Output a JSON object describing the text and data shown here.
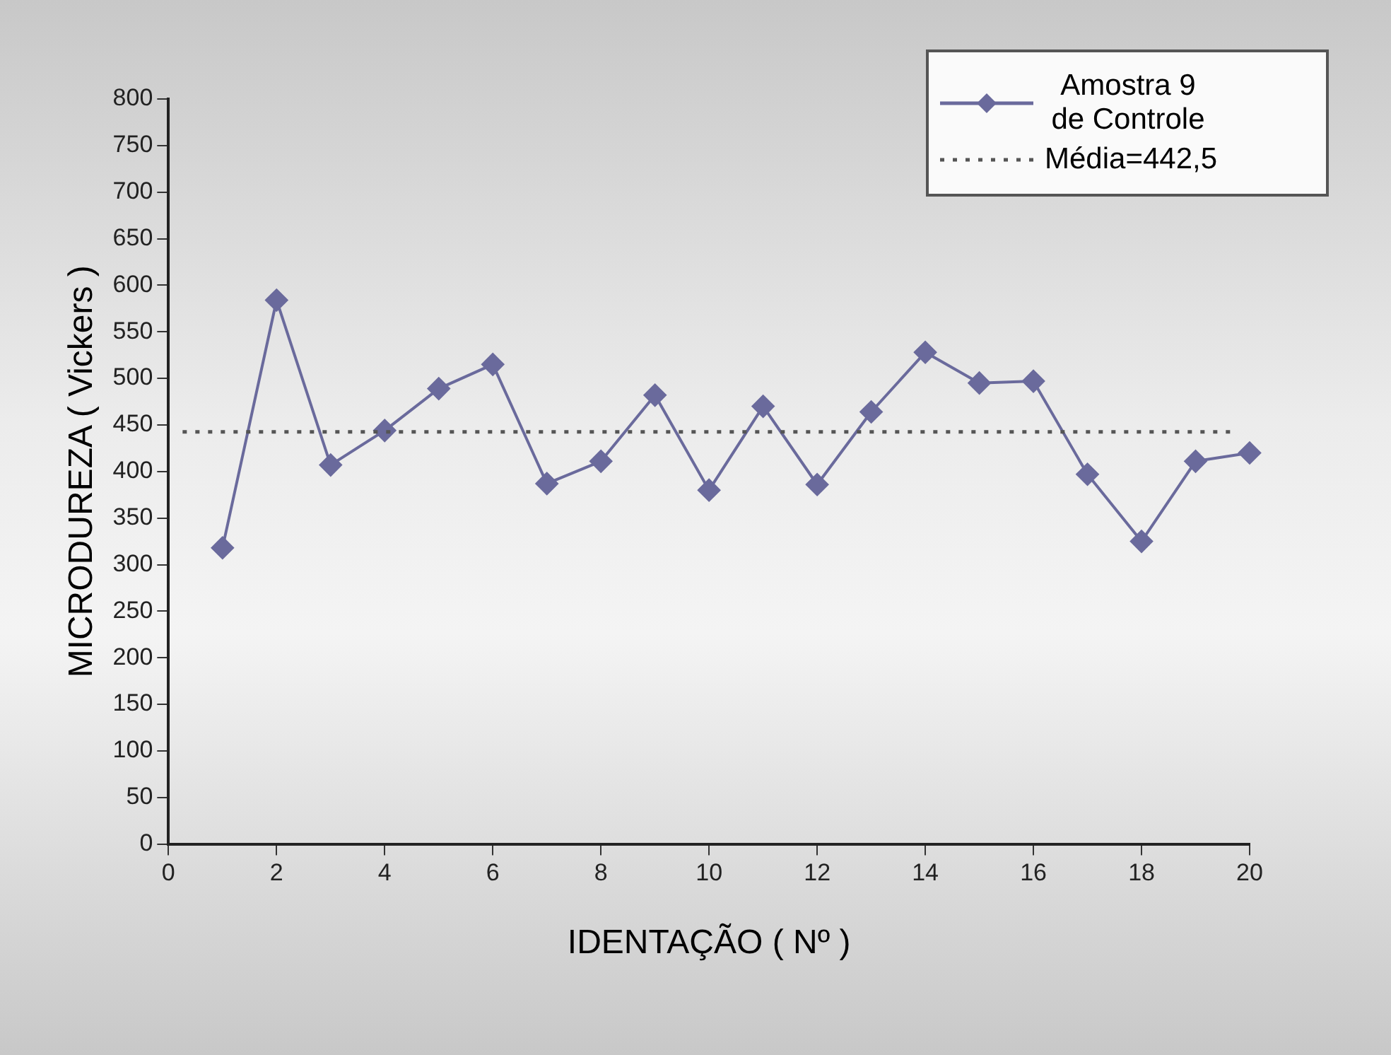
{
  "chart_data": {
    "type": "line",
    "xlabel": "IDENTAÇÃO ( Nº )",
    "ylabel": "MICRODUREZA ( Vickers )",
    "x": [
      1,
      2,
      3,
      4,
      5,
      6,
      7,
      8,
      9,
      10,
      11,
      12,
      13,
      14,
      15,
      16,
      17,
      18,
      19,
      20
    ],
    "series": [
      {
        "name": "Amostra 9 de Controle",
        "color": "#6a6a9c",
        "values": [
          318,
          584,
          407,
          444,
          489,
          515,
          387,
          411,
          482,
          380,
          470,
          386,
          464,
          528,
          495,
          497,
          397,
          325,
          411,
          420
        ]
      }
    ],
    "xlim": [
      0,
      20
    ],
    "xticks": [
      0,
      2,
      4,
      6,
      8,
      10,
      12,
      14,
      16,
      18,
      20
    ],
    "ylim": [
      0,
      800
    ],
    "yticks": [
      0,
      50,
      100,
      150,
      200,
      250,
      300,
      350,
      400,
      450,
      500,
      550,
      600,
      650,
      700,
      750,
      800
    ],
    "ref_lines": [
      {
        "axis": "y",
        "value": 442.5,
        "label": "Média=442,5",
        "color": "#555555",
        "line_style": "dotted"
      }
    ],
    "marker": "diamond",
    "line_style": "solid",
    "grid": false,
    "legend": "top right"
  }
}
